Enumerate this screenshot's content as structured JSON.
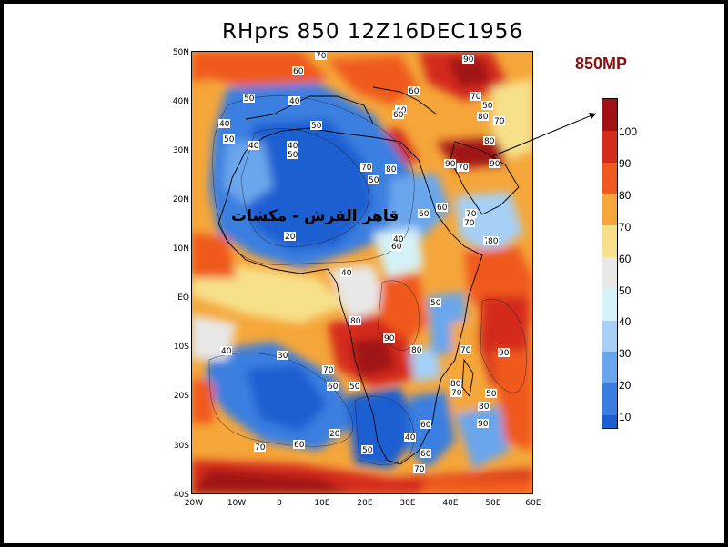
{
  "title": "RHprs 850 12Z16DEC1956",
  "level_label": "850MP",
  "annotation": "قاهر القرش - مكشات",
  "lat_labels": [
    "50N",
    "40N",
    "30N",
    "20N",
    "10N",
    "EQ",
    "10S",
    "20S",
    "30S",
    "40S"
  ],
  "lon_labels": [
    "20W",
    "10W",
    "0",
    "10E",
    "20E",
    "30E",
    "40E",
    "50E",
    "60E"
  ],
  "colorbar": {
    "labels": [
      "10",
      "20",
      "30",
      "40",
      "50",
      "60",
      "70",
      "80",
      "90",
      "100"
    ],
    "colors": [
      "#1c5fd1",
      "#3a7fe0",
      "#6aa6ec",
      "#a6d0f5",
      "#d4f2f7",
      "#e8e8e8",
      "#f7e08a",
      "#f5a63a",
      "#ef5a1e",
      "#d42c1c",
      "#a01214"
    ]
  },
  "contour_labels": [
    "70",
    "60",
    "90",
    "50",
    "40",
    "60",
    "40",
    "70",
    "50",
    "80",
    "60",
    "40",
    "50",
    "70",
    "50",
    "40",
    "50",
    "40",
    "70",
    "80",
    "90",
    "80",
    "90",
    "70",
    "50",
    "20",
    "60",
    "40",
    "70",
    "60",
    "70",
    "80",
    "60",
    "70",
    "40",
    "50",
    "80",
    "90",
    "80",
    "70",
    "90",
    "40",
    "30",
    "70",
    "60",
    "50",
    "80",
    "70",
    "50",
    "80",
    "20",
    "60",
    "90",
    "40",
    "60",
    "70",
    "20",
    "50",
    "60",
    "70"
  ]
}
